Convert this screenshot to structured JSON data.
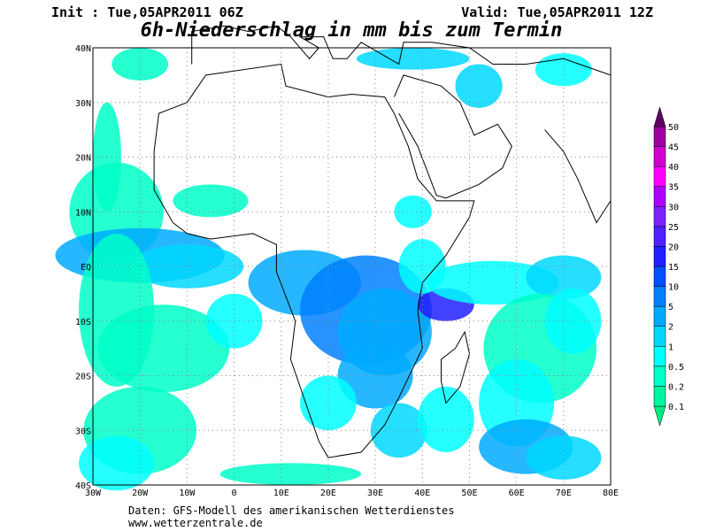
{
  "header": {
    "init": "Init : Tue,05APR2011 06Z",
    "valid": "Valid: Tue,05APR2011 12Z",
    "title": "6h-Niederschlag in mm bis zum Termin"
  },
  "map": {
    "lat_labels": [
      "40N",
      "30N",
      "20N",
      "10N",
      "EQ",
      "10S",
      "20S",
      "30S",
      "40S"
    ],
    "lon_labels": [
      "30W",
      "20W",
      "10W",
      "0",
      "10E",
      "20E",
      "30E",
      "40E",
      "50E",
      "60E",
      "70E",
      "80E"
    ]
  },
  "legend": {
    "labels": [
      "0.1",
      "0.2",
      "0.5",
      "1",
      "2",
      "5",
      "10",
      "15",
      "20",
      "25",
      "30",
      "35",
      "40",
      "45",
      "50"
    ],
    "colors": [
      "#00ee80",
      "#00f5a0",
      "#00ffc8",
      "#00ffff",
      "#00d8ff",
      "#00aaff",
      "#0080ff",
      "#0050ff",
      "#2020ff",
      "#5020ff",
      "#8020ff",
      "#b000ff",
      "#ff00ff",
      "#d000d0",
      "#a000a0",
      "#600060"
    ]
  },
  "footer": {
    "source": "Daten: GFS-Modell des amerikanischen Wetterdienstes",
    "site": "www.wetterzentrale.de"
  }
}
